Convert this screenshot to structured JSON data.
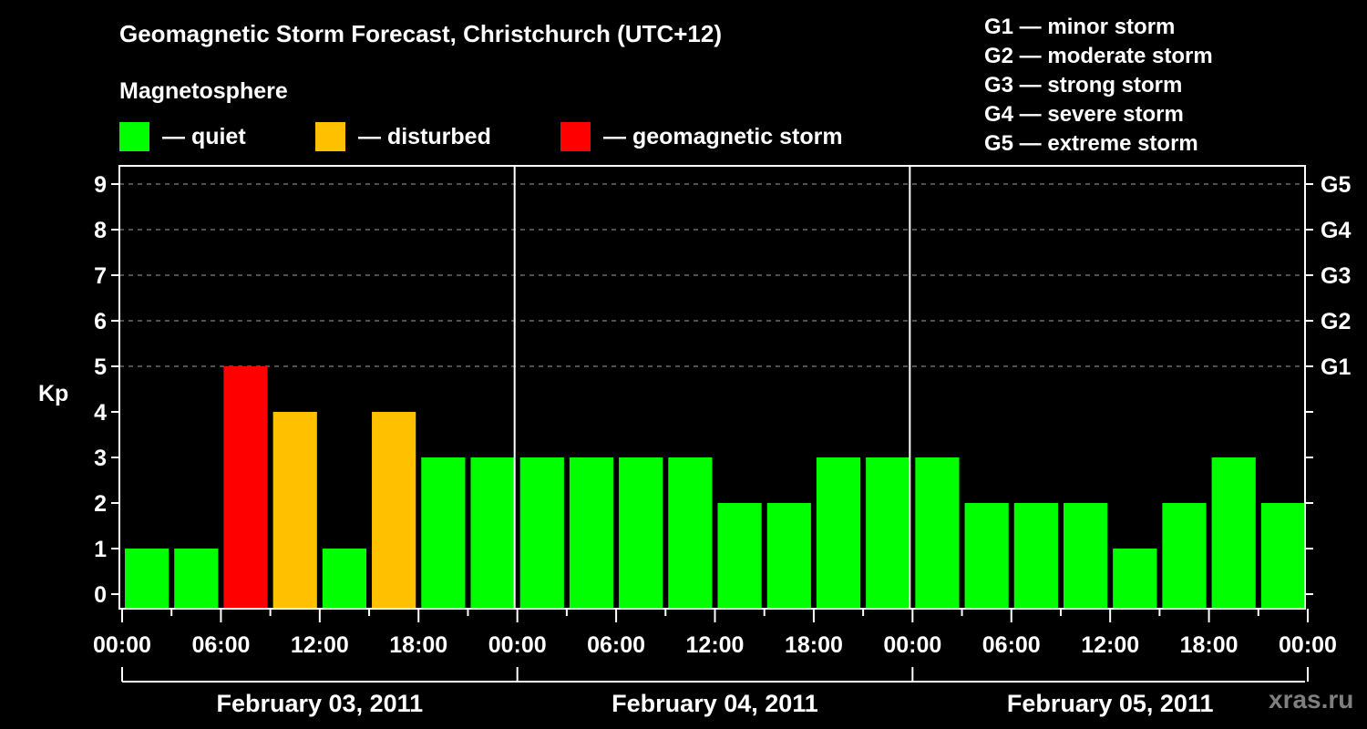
{
  "header": {
    "title": "Geomagnetic Storm Forecast, Christchurch (UTC+12)",
    "subtitle": "Magnetosphere"
  },
  "legend": [
    {
      "label": "— quiet",
      "color": "#00ff00"
    },
    {
      "label": "— disturbed",
      "color": "#ffc000"
    },
    {
      "label": "— geomagnetic storm",
      "color": "#ff0000"
    }
  ],
  "g_scale": [
    "G1 — minor storm",
    "G2 — moderate storm",
    "G3 — strong storm",
    "G4 — severe storm",
    "G5 — extreme storm"
  ],
  "watermark": "xras.ru",
  "colors": {
    "quiet": "#00ff00",
    "disturbed": "#ffc000",
    "storm": "#ff0000",
    "grid": "#808080",
    "axis": "#ffffff"
  },
  "chart_data": {
    "type": "bar",
    "title": "Geomagnetic Storm Forecast, Christchurch (UTC+12)",
    "xlabel": "",
    "ylabel": "Kp",
    "ylim": [
      0,
      9
    ],
    "yticks": [
      0,
      1,
      2,
      3,
      4,
      5,
      6,
      7,
      8,
      9
    ],
    "right_axis_labels": {
      "5": "G1",
      "6": "G2",
      "7": "G3",
      "8": "G4",
      "9": "G5"
    },
    "grid": "dashed horizontal at Kp 5–9",
    "x_tick_labels": [
      "00:00",
      "06:00",
      "12:00",
      "18:00",
      "00:00",
      "06:00",
      "12:00",
      "18:00",
      "00:00",
      "06:00",
      "12:00",
      "18:00",
      "00:00"
    ],
    "day_labels": [
      "February 03, 2011",
      "February 04, 2011",
      "February 05, 2011"
    ],
    "interval_hours": 3,
    "categories": [
      "Feb 03 00-03",
      "Feb 03 03-06",
      "Feb 03 06-09",
      "Feb 03 09-12",
      "Feb 03 12-15",
      "Feb 03 15-18",
      "Feb 03 18-21",
      "Feb 03 21-24",
      "Feb 04 00-03",
      "Feb 04 03-06",
      "Feb 04 06-09",
      "Feb 04 09-12",
      "Feb 04 12-15",
      "Feb 04 15-18",
      "Feb 04 18-21",
      "Feb 04 21-24",
      "Feb 05 00-03",
      "Feb 05 03-06",
      "Feb 05 06-09",
      "Feb 05 09-12",
      "Feb 05 12-15",
      "Feb 05 15-18",
      "Feb 05 18-21",
      "Feb 05 21-24"
    ],
    "values": [
      1,
      1,
      5,
      4,
      1,
      4,
      3,
      3,
      3,
      3,
      3,
      3,
      2,
      2,
      3,
      3,
      3,
      2,
      2,
      2,
      1,
      2,
      3,
      2
    ],
    "status": [
      "quiet",
      "quiet",
      "storm",
      "disturbed",
      "quiet",
      "disturbed",
      "quiet",
      "quiet",
      "quiet",
      "quiet",
      "quiet",
      "quiet",
      "quiet",
      "quiet",
      "quiet",
      "quiet",
      "quiet",
      "quiet",
      "quiet",
      "quiet",
      "quiet",
      "quiet",
      "quiet",
      "quiet"
    ],
    "legend_position": "top"
  }
}
